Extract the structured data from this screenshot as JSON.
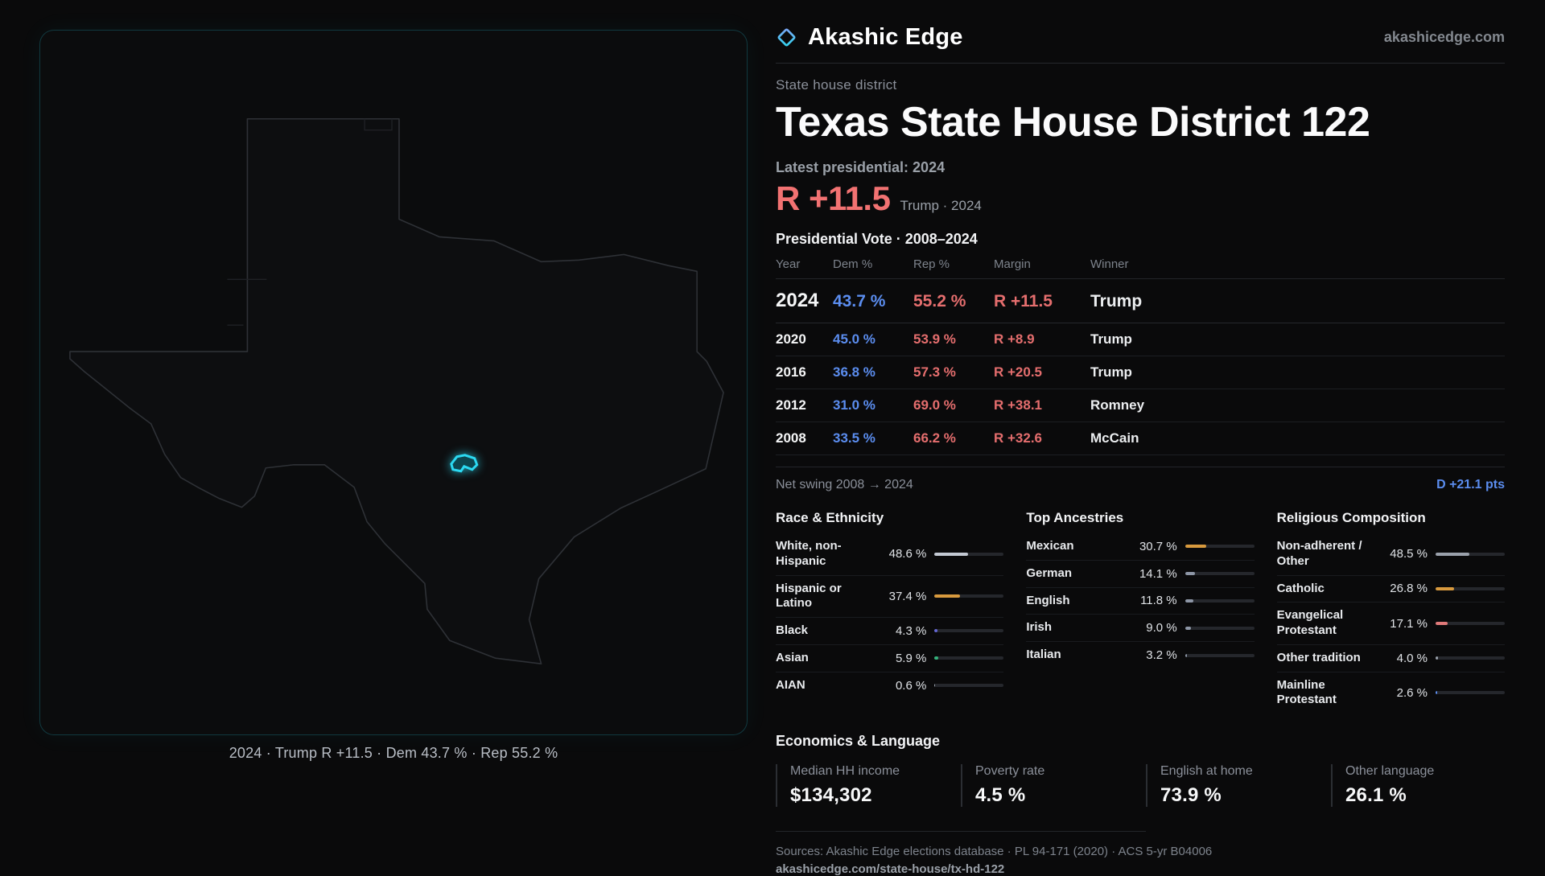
{
  "header": {
    "brand": "Akashic Edge",
    "domain": "akashicedge.com"
  },
  "district": {
    "kicker": "State house district",
    "title": "Texas State House District 122",
    "latest_label": "Latest presidential: 2024",
    "headline": {
      "margin": "R +11.5",
      "detail": "Trump · 2024"
    }
  },
  "map": {
    "caption": "2024 · Trump R +11.5 · Dem 43.7 % · Rep 55.2 %",
    "district_color": "#2bd9f2"
  },
  "vote_table": {
    "title": "Presidential Vote · 2008–2024",
    "columns": {
      "year": "Year",
      "dem": "Dem %",
      "rep": "Rep %",
      "margin": "Margin",
      "winner": "Winner"
    },
    "rows": [
      {
        "year": "2024",
        "dem": "43.7 %",
        "rep": "55.2 %",
        "margin": "R +11.5",
        "winner": "Trump"
      },
      {
        "year": "2020",
        "dem": "45.0 %",
        "rep": "53.9 %",
        "margin": "R +8.9",
        "winner": "Trump"
      },
      {
        "year": "2016",
        "dem": "36.8 %",
        "rep": "57.3 %",
        "margin": "R +20.5",
        "winner": "Trump"
      },
      {
        "year": "2012",
        "dem": "31.0 %",
        "rep": "69.0 %",
        "margin": "R +38.1",
        "winner": "Romney"
      },
      {
        "year": "2008",
        "dem": "33.5 %",
        "rep": "66.2 %",
        "margin": "R +32.6",
        "winner": "McCain"
      }
    ],
    "net_swing": {
      "label": "Net swing 2008 → 2024",
      "value": "D +21.1 pts"
    }
  },
  "demographics": [
    {
      "title": "Race & Ethnicity",
      "items": [
        {
          "label": "White, non-Hispanic",
          "value": "48.6 %",
          "pct": 48.6,
          "color": "#c3c9d3"
        },
        {
          "label": "Hispanic or Latino",
          "value": "37.4 %",
          "pct": 37.4,
          "color": "#d89a3e"
        },
        {
          "label": "Black",
          "value": "4.3 %",
          "pct": 4.3,
          "color": "#6467d4"
        },
        {
          "label": "Asian",
          "value": "5.9 %",
          "pct": 5.9,
          "color": "#35b27b"
        },
        {
          "label": "AIAN",
          "value": "0.6 %",
          "pct": 0.6,
          "color": "#9aa1ab"
        }
      ]
    },
    {
      "title": "Top Ancestries",
      "items": [
        {
          "label": "Mexican",
          "value": "30.7 %",
          "pct": 30.7,
          "color": "#d89a3e"
        },
        {
          "label": "German",
          "value": "14.1 %",
          "pct": 14.1,
          "color": "#8d96a6"
        },
        {
          "label": "English",
          "value": "11.8 %",
          "pct": 11.8,
          "color": "#8d96a6"
        },
        {
          "label": "Irish",
          "value": "9.0 %",
          "pct": 9.0,
          "color": "#8d96a6"
        },
        {
          "label": "Italian",
          "value": "3.2 %",
          "pct": 3.2,
          "color": "#8d96a6"
        }
      ]
    },
    {
      "title": "Religious Composition",
      "items": [
        {
          "label": "Non-adherent / Other",
          "value": "48.5 %",
          "pct": 48.5,
          "color": "#9aa1ab"
        },
        {
          "label": "Catholic",
          "value": "26.8 %",
          "pct": 26.8,
          "color": "#d89a3e"
        },
        {
          "label": "Evangelical Protestant",
          "value": "17.1 %",
          "pct": 17.1,
          "color": "#e07a7a"
        },
        {
          "label": "Other tradition",
          "value": "4.0 %",
          "pct": 4.0,
          "color": "#9aa1ab"
        },
        {
          "label": "Mainline Protestant",
          "value": "2.6 %",
          "pct": 2.6,
          "color": "#5b8def"
        }
      ]
    }
  ],
  "economics": {
    "title": "Economics & Language",
    "stats": [
      {
        "label": "Median HH income",
        "value": "$134,302"
      },
      {
        "label": "Poverty rate",
        "value": "4.5 %"
      },
      {
        "label": "English at home",
        "value": "73.9 %"
      },
      {
        "label": "Other language",
        "value": "26.1 %"
      }
    ]
  },
  "footer": {
    "sources": "Sources: Akashic Edge elections database · PL 94-171 (2020) · ACS 5-yr B04006",
    "permalink": "akashicedge.com/state-house/tx-hd-122"
  },
  "colors": {
    "dem": "#5b8def",
    "rep": "#ef6e6e",
    "accent": "#2bd9f2",
    "amber": "#d89a3e"
  }
}
